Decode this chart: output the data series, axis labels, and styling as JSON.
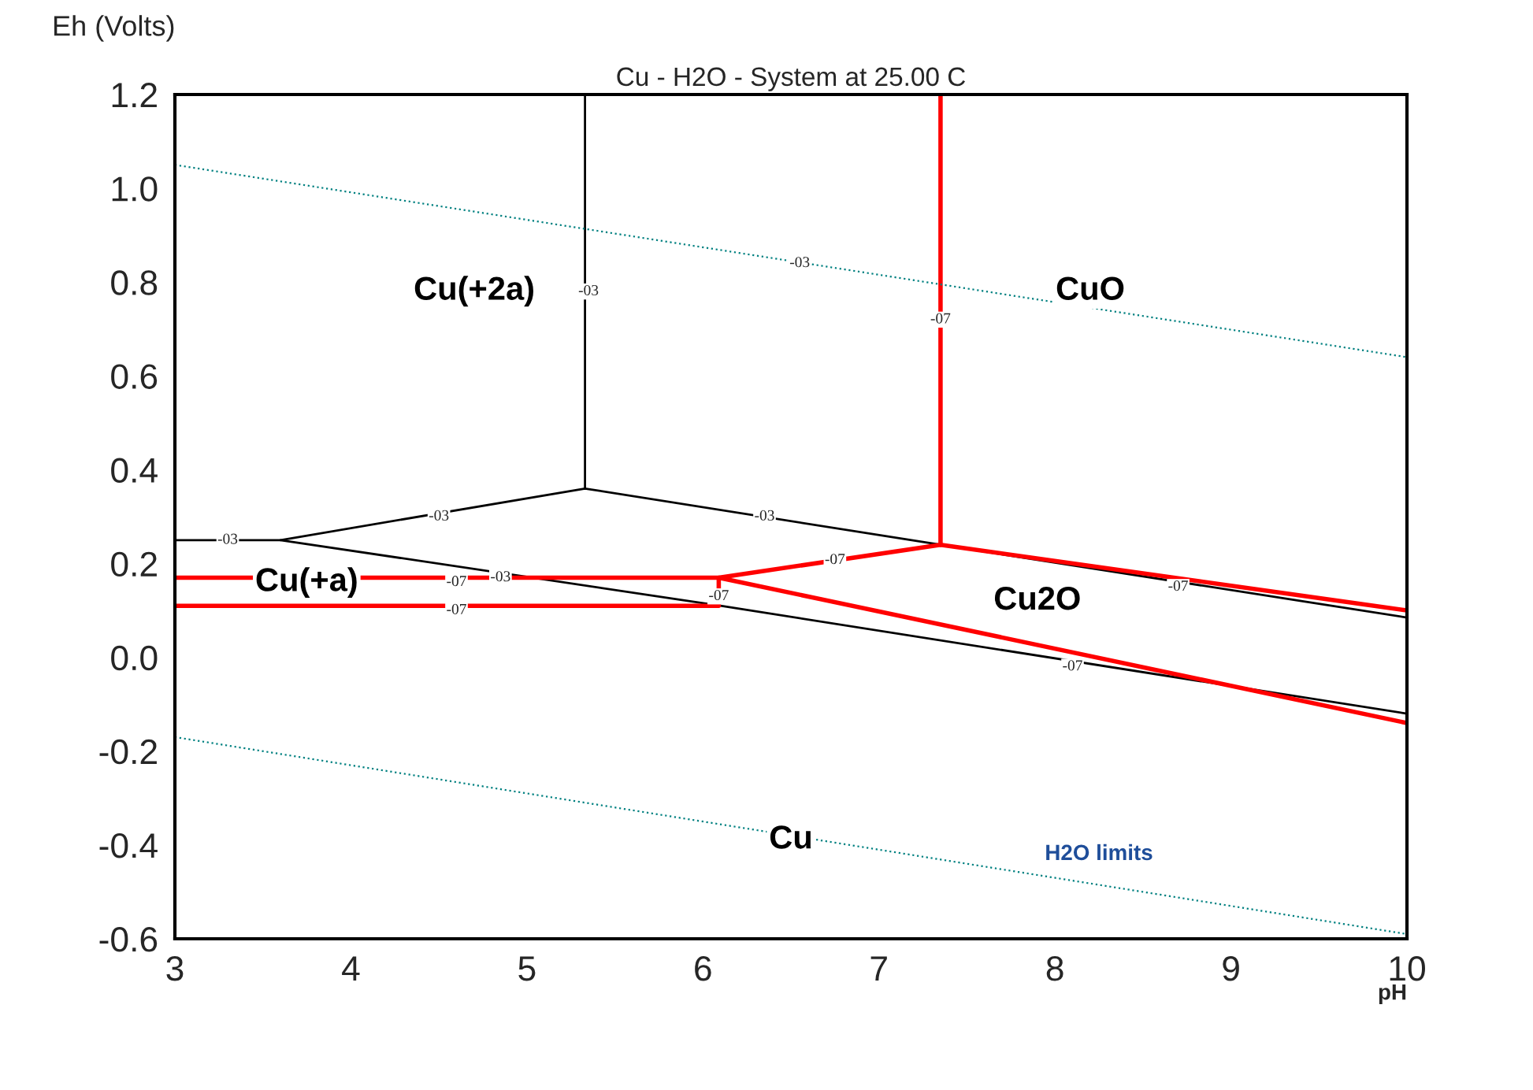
{
  "chart_data": {
    "type": "line",
    "title": "Cu - H2O - System at 25.00 C",
    "xlabel": "pH",
    "ylabel": "Eh (Volts)",
    "xlim": [
      3,
      10
    ],
    "ylim": [
      -0.6,
      1.2
    ],
    "xticks": [
      3,
      4,
      5,
      6,
      7,
      8,
      9,
      10
    ],
    "yticks": [
      -0.6,
      -0.4,
      -0.2,
      {
        "value": 0,
        "label": "0.0"
      },
      0.2,
      0.4,
      0.6,
      0.8,
      {
        "value": 1,
        "label": "1.0"
      },
      1.2
    ],
    "grid": false,
    "legend": false,
    "series": [
      {
        "color": "#000000",
        "x": [
          5.33,
          5.33
        ],
        "values": [
          0.36,
          1.2
        ]
      },
      {
        "color": "#000000",
        "x": [
          3,
          3.6,
          5.33,
          7.35,
          10
        ],
        "values": [
          0.25,
          0.25,
          0.36,
          0.24,
          0.085
        ]
      },
      {
        "color": "#000000",
        "x": [
          3.6,
          6.1,
          10
        ],
        "values": [
          0.25,
          0.11,
          -0.12
        ]
      },
      {
        "color": "#ff0000",
        "x": [
          7.35,
          7.35
        ],
        "values": [
          0.24,
          1.2
        ]
      },
      {
        "color": "#ff0000",
        "x": [
          3,
          6.09,
          7.35,
          10
        ],
        "values": [
          0.17,
          0.17,
          0.24,
          0.1
        ]
      },
      {
        "color": "#ff0000",
        "x": [
          3,
          6.09,
          6.09,
          10
        ],
        "values": [
          0.11,
          0.11,
          0.17,
          -0.14
        ]
      },
      {
        "color": "#008080",
        "line_style": "dotted",
        "x": [
          3,
          10
        ],
        "values": [
          1.05,
          0.64
        ]
      },
      {
        "color": "#008080",
        "line_style": "dotted",
        "x": [
          3,
          10
        ],
        "values": [
          -0.17,
          -0.59
        ]
      }
    ],
    "annotations": [
      "Cu(+2a)",
      "CuO",
      "Cu(+a)",
      "Cu2O",
      "Cu",
      "H2O limits",
      {
        "text": "-03",
        "x": 3.3,
        "y": 0.25
      },
      {
        "text": "-03",
        "x": 4.5,
        "y": 0.3
      },
      {
        "text": "-03",
        "x": 5.35,
        "y": 0.78
      },
      {
        "text": "-03",
        "x": 6.35,
        "y": 0.3
      },
      {
        "text": "-03",
        "x": 4.85,
        "y": 0.17
      },
      {
        "text": "-03",
        "x": 6.55,
        "y": 0.84
      },
      {
        "text": "-07",
        "x": 4.6,
        "y": 0.16
      },
      {
        "text": "-07",
        "x": 4.6,
        "y": 0.1
      },
      {
        "text": "-07",
        "x": 6.09,
        "y": 0.13
      },
      {
        "text": "-07",
        "x": 6.75,
        "y": 0.207
      },
      {
        "text": "-07",
        "x": 7.35,
        "y": 0.72
      },
      {
        "text": "-07",
        "x": 8.7,
        "y": 0.15
      },
      {
        "text": "-07",
        "x": 8.1,
        "y": -0.02
      }
    ]
  }
}
